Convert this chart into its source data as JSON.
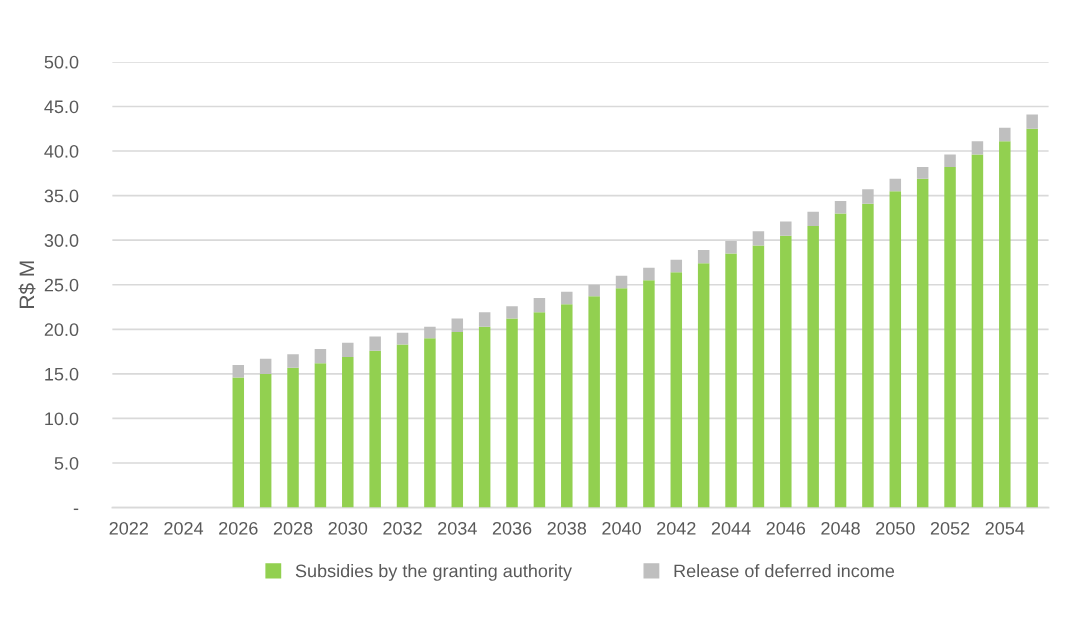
{
  "chart_data": {
    "type": "bar",
    "stacked": true,
    "ylabel": "R$ M",
    "categories": [
      "2022",
      null,
      "2024",
      null,
      "2026",
      null,
      "2028",
      null,
      "2030",
      null,
      "2032",
      null,
      "2034",
      null,
      "2036",
      null,
      "2038",
      null,
      "2040",
      null,
      "2042",
      null,
      "2044",
      null,
      "2046",
      null,
      "2048",
      null,
      "2050",
      null,
      "2052",
      null,
      "2054",
      null
    ],
    "series": [
      {
        "name": "Subsidies by the granting authority",
        "color": "#92d050",
        "values": [
          null,
          null,
          null,
          null,
          14.6,
          15.0,
          15.7,
          16.2,
          16.9,
          17.6,
          18.3,
          19.0,
          19.7,
          20.3,
          21.2,
          21.9,
          22.8,
          23.7,
          24.6,
          25.5,
          26.4,
          27.4,
          28.5,
          29.4,
          30.5,
          31.6,
          33.0,
          34.1,
          35.5,
          36.9,
          38.2,
          39.6,
          41.1,
          42.5
        ]
      },
      {
        "name": "Release of deferred income",
        "color": "#bfbfbf",
        "values": [
          null,
          null,
          null,
          null,
          1.4,
          1.7,
          1.5,
          1.6,
          1.6,
          1.6,
          1.3,
          1.3,
          1.5,
          1.6,
          1.4,
          1.6,
          1.4,
          1.3,
          1.4,
          1.4,
          1.4,
          1.5,
          1.4,
          1.6,
          1.6,
          1.6,
          1.4,
          1.6,
          1.4,
          1.3,
          1.4,
          1.5,
          1.5,
          1.6
        ]
      }
    ],
    "ylim": [
      0,
      50
    ],
    "yticks": [
      {
        "value": 0,
        "label": "-"
      },
      {
        "value": 5,
        "label": "5.0"
      },
      {
        "value": 10,
        "label": "10.0"
      },
      {
        "value": 15,
        "label": "15.0"
      },
      {
        "value": 20,
        "label": "20.0"
      },
      {
        "value": 25,
        "label": "25.0"
      },
      {
        "value": 30,
        "label": "30.0"
      },
      {
        "value": 35,
        "label": "35.0"
      },
      {
        "value": 40,
        "label": "40.0"
      },
      {
        "value": 45,
        "label": "45.0"
      },
      {
        "value": 50,
        "label": "50.0"
      }
    ],
    "grid": "y",
    "legend": "bottom"
  }
}
